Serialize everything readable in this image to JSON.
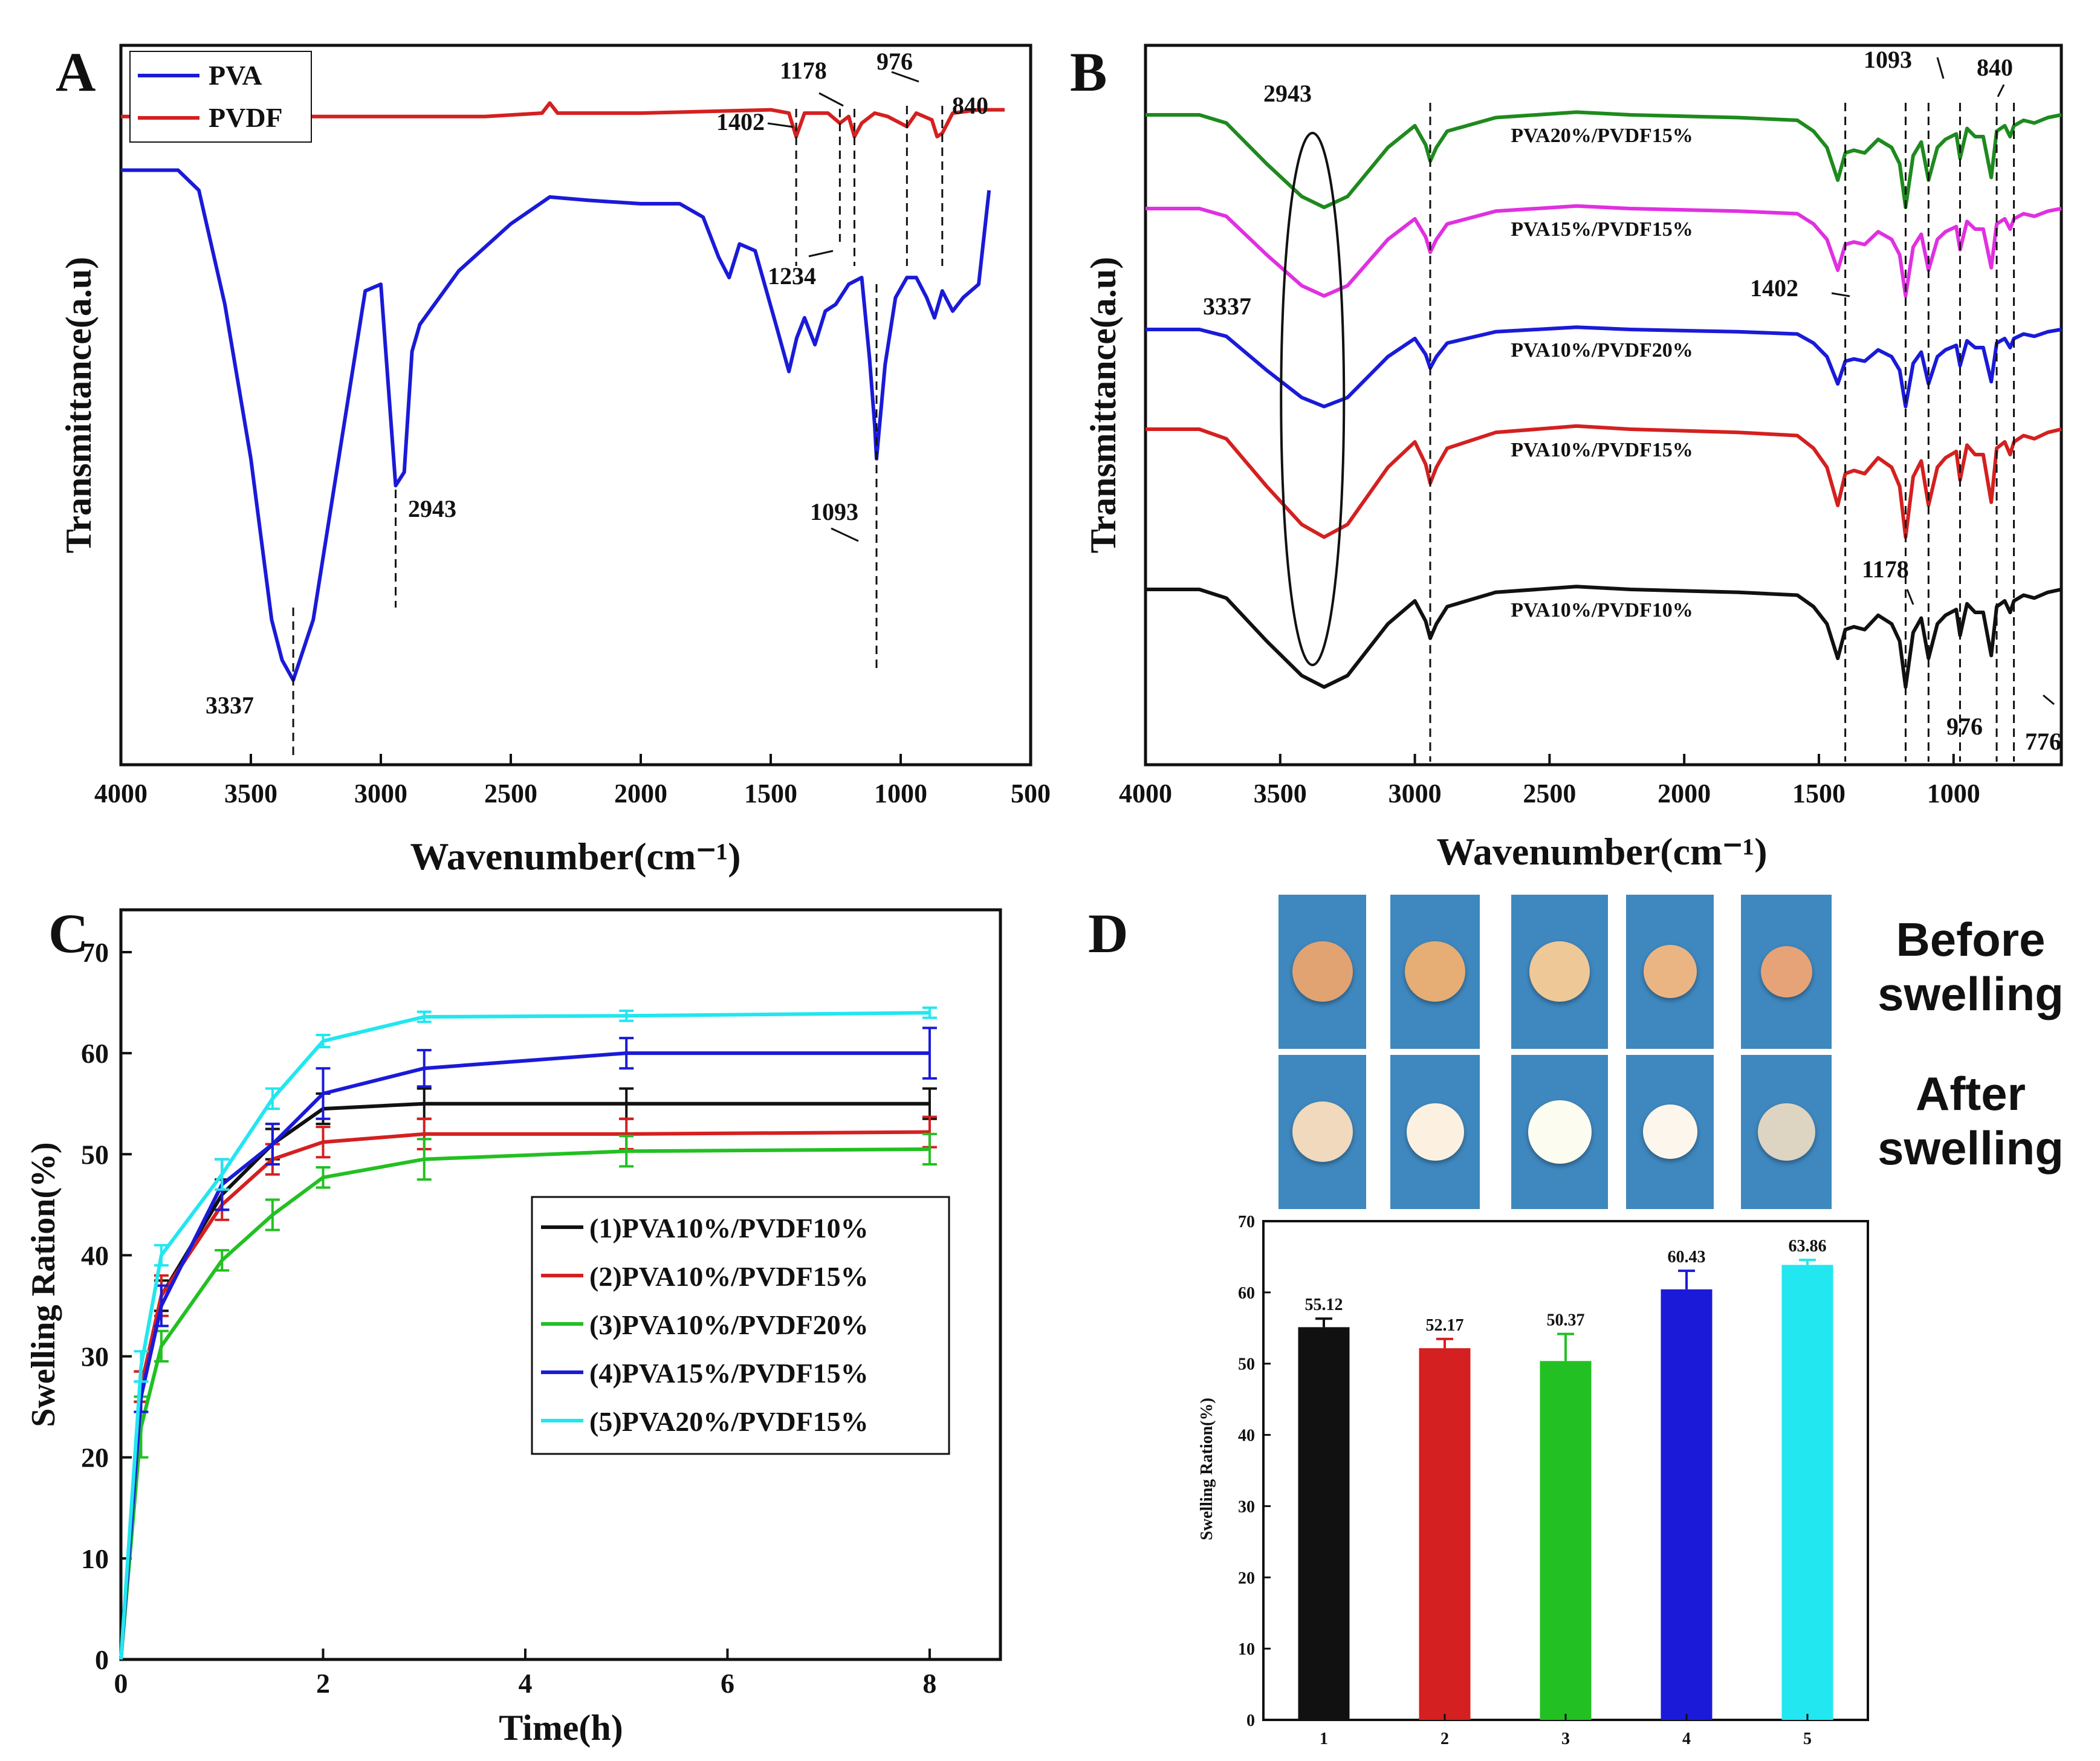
{
  "panels": {
    "A": {
      "letter": "A"
    },
    "B": {
      "letter": "B"
    },
    "C": {
      "letter": "C"
    },
    "D": {
      "letter": "D",
      "before_label": "Before swelling",
      "after_label": "After swelling"
    }
  },
  "colors": {
    "black": "#111111",
    "red": "#d42020",
    "green": "#22c022",
    "blue": "#1a1ad8",
    "cyan": "#22e6f0",
    "darkgreen": "#1e8a1e",
    "magenta": "#e030e0",
    "photo_bg": "#3f88bf"
  },
  "chart_data": [
    {
      "panel": "A",
      "type": "line",
      "xlabel": "Wavenumber(cm⁻¹)",
      "ylabel": "Transmittance(a.u)",
      "xlim": [
        4000,
        500
      ],
      "x_reversed": true,
      "xticks": [
        4000,
        3500,
        3000,
        2500,
        2000,
        1500,
        1000,
        500
      ],
      "legend": [
        "PVA",
        "PVDF"
      ],
      "legend_position": "top-left",
      "series": [
        {
          "name": "PVDF",
          "color": "red",
          "points": [
            [
              4000,
              0.93
            ],
            [
              3000,
              0.93
            ],
            [
              2600,
              0.93
            ],
            [
              2380,
              0.935
            ],
            [
              2350,
              0.95
            ],
            [
              2320,
              0.935
            ],
            [
              2000,
              0.935
            ],
            [
              1500,
              0.94
            ],
            [
              1430,
              0.935
            ],
            [
              1402,
              0.9
            ],
            [
              1370,
              0.935
            ],
            [
              1280,
              0.935
            ],
            [
              1234,
              0.92
            ],
            [
              1200,
              0.93
            ],
            [
              1178,
              0.9
            ],
            [
              1150,
              0.92
            ],
            [
              1100,
              0.935
            ],
            [
              1050,
              0.93
            ],
            [
              976,
              0.915
            ],
            [
              940,
              0.935
            ],
            [
              880,
              0.925
            ],
            [
              860,
              0.9
            ],
            [
              840,
              0.905
            ],
            [
              800,
              0.935
            ],
            [
              700,
              0.94
            ],
            [
              600,
              0.94
            ]
          ]
        },
        {
          "name": "PVA",
          "color": "blue",
          "points": [
            [
              4000,
              0.85
            ],
            [
              3780,
              0.85
            ],
            [
              3700,
              0.82
            ],
            [
              3600,
              0.65
            ],
            [
              3500,
              0.42
            ],
            [
              3420,
              0.18
            ],
            [
              3380,
              0.12
            ],
            [
              3337,
              0.09
            ],
            [
              3260,
              0.18
            ],
            [
              3150,
              0.45
            ],
            [
              3060,
              0.67
            ],
            [
              3000,
              0.68
            ],
            [
              2943,
              0.38
            ],
            [
              2910,
              0.4
            ],
            [
              2880,
              0.58
            ],
            [
              2850,
              0.62
            ],
            [
              2700,
              0.7
            ],
            [
              2500,
              0.77
            ],
            [
              2350,
              0.81
            ],
            [
              2200,
              0.805
            ],
            [
              2000,
              0.8
            ],
            [
              1850,
              0.8
            ],
            [
              1760,
              0.78
            ],
            [
              1700,
              0.72
            ],
            [
              1660,
              0.69
            ],
            [
              1620,
              0.74
            ],
            [
              1560,
              0.73
            ],
            [
              1480,
              0.62
            ],
            [
              1430,
              0.55
            ],
            [
              1400,
              0.6
            ],
            [
              1370,
              0.63
            ],
            [
              1330,
              0.59
            ],
            [
              1290,
              0.64
            ],
            [
              1250,
              0.65
            ],
            [
              1200,
              0.68
            ],
            [
              1150,
              0.69
            ],
            [
              1120,
              0.57
            ],
            [
              1100,
              0.47
            ],
            [
              1093,
              0.42
            ],
            [
              1060,
              0.56
            ],
            [
              1020,
              0.66
            ],
            [
              976,
              0.69
            ],
            [
              940,
              0.69
            ],
            [
              900,
              0.66
            ],
            [
              870,
              0.63
            ],
            [
              840,
              0.67
            ],
            [
              800,
              0.64
            ],
            [
              760,
              0.66
            ],
            [
              700,
              0.68
            ],
            [
              660,
              0.82
            ]
          ]
        }
      ],
      "annotations": [
        "1402",
        "1178",
        "976",
        "840",
        "1234",
        "2943",
        "1093",
        "3337"
      ]
    },
    {
      "panel": "B",
      "type": "line",
      "xlabel": "Wavenumber(cm⁻¹)",
      "ylabel": "Transmittance(a.u)",
      "xlim": [
        4000,
        600
      ],
      "x_reversed": true,
      "xticks": [
        4000,
        3500,
        3000,
        2500,
        2000,
        1500,
        1000
      ],
      "series": [
        {
          "name": "PVA20%/PVDF15%",
          "color": "darkgreen",
          "offset": 4
        },
        {
          "name": "PVA15%/PVDF15%",
          "color": "magenta",
          "offset": 3
        },
        {
          "name": "PVA10%/PVDF20%",
          "color": "blue",
          "offset": 2
        },
        {
          "name": "PVA10%/PVDF15%",
          "color": "red",
          "offset": 1
        },
        {
          "name": "PVA10%/PVDF10%",
          "color": "black",
          "offset": 0
        }
      ],
      "annotations": [
        "2943",
        "1093",
        "840",
        "3337",
        "1402",
        "1178",
        "976",
        "776"
      ]
    },
    {
      "panel": "C",
      "type": "line",
      "xlabel": "Time(h)",
      "ylabel": "Swelling Ration(%)",
      "xlim": [
        0,
        8.7
      ],
      "ylim": [
        0,
        70
      ],
      "xticks": [
        0,
        2,
        4,
        6,
        8
      ],
      "yticks": [
        0,
        10,
        20,
        30,
        40,
        50,
        60,
        70
      ],
      "x": [
        0,
        0.2,
        0.4,
        1,
        1.5,
        2,
        3,
        5,
        8
      ],
      "legend_position": "center-right",
      "series": [
        {
          "name": "(1)PVA10%/PVDF10%",
          "color": "black",
          "values": [
            0,
            27,
            36,
            46,
            51,
            54.5,
            55,
            55,
            55
          ],
          "err": [
            0,
            1.5,
            1.5,
            1.5,
            1.5,
            1.5,
            1.5,
            1.5,
            1.5
          ]
        },
        {
          "name": "(2)PVA10%/PVDF15%",
          "color": "red",
          "values": [
            0,
            27,
            36,
            45,
            49.5,
            51.2,
            52,
            52,
            52.2
          ],
          "err": [
            0,
            1.5,
            2,
            1.5,
            1.5,
            1.5,
            1.5,
            1.5,
            1.5
          ]
        },
        {
          "name": "(3)PVA10%/PVDF20%",
          "color": "green",
          "values": [
            0,
            23,
            31,
            39.5,
            44,
            47.7,
            49.5,
            50.3,
            50.5
          ],
          "err": [
            0,
            3,
            1.5,
            1,
            1.5,
            1,
            2,
            1.5,
            1.5
          ]
        },
        {
          "name": "(4)PVA15%/PVDF15%",
          "color": "blue",
          "values": [
            0,
            26,
            35,
            47,
            51,
            56,
            58.5,
            60,
            60
          ],
          "err": [
            0,
            1.5,
            2,
            2.5,
            2,
            2.5,
            1.8,
            1.5,
            2.5
          ]
        },
        {
          "name": "(5)PVA20%/PVDF15%",
          "color": "cyan",
          "values": [
            0,
            29,
            40,
            48,
            55.5,
            61.2,
            63.6,
            63.7,
            64
          ],
          "err": [
            0,
            1.5,
            1,
            1.5,
            1,
            0.6,
            0.5,
            0.5,
            0.5
          ]
        }
      ]
    },
    {
      "panel": "D",
      "type": "bar",
      "ylabel": "Swelling Ration(%)",
      "categories": [
        "1",
        "2",
        "3",
        "4",
        "5"
      ],
      "values": [
        55.12,
        52.17,
        50.37,
        60.43,
        63.86
      ],
      "err": [
        1.2,
        1.3,
        3.8,
        2.6,
        0.7
      ],
      "ylim": [
        0,
        70
      ],
      "yticks": [
        0,
        10,
        20,
        30,
        40,
        50,
        60,
        70
      ],
      "bar_labels": [
        "55.12",
        "52.17",
        "50.37",
        "60.43",
        "63.86"
      ],
      "colors": [
        "black",
        "red",
        "green",
        "blue",
        "cyan"
      ]
    }
  ]
}
